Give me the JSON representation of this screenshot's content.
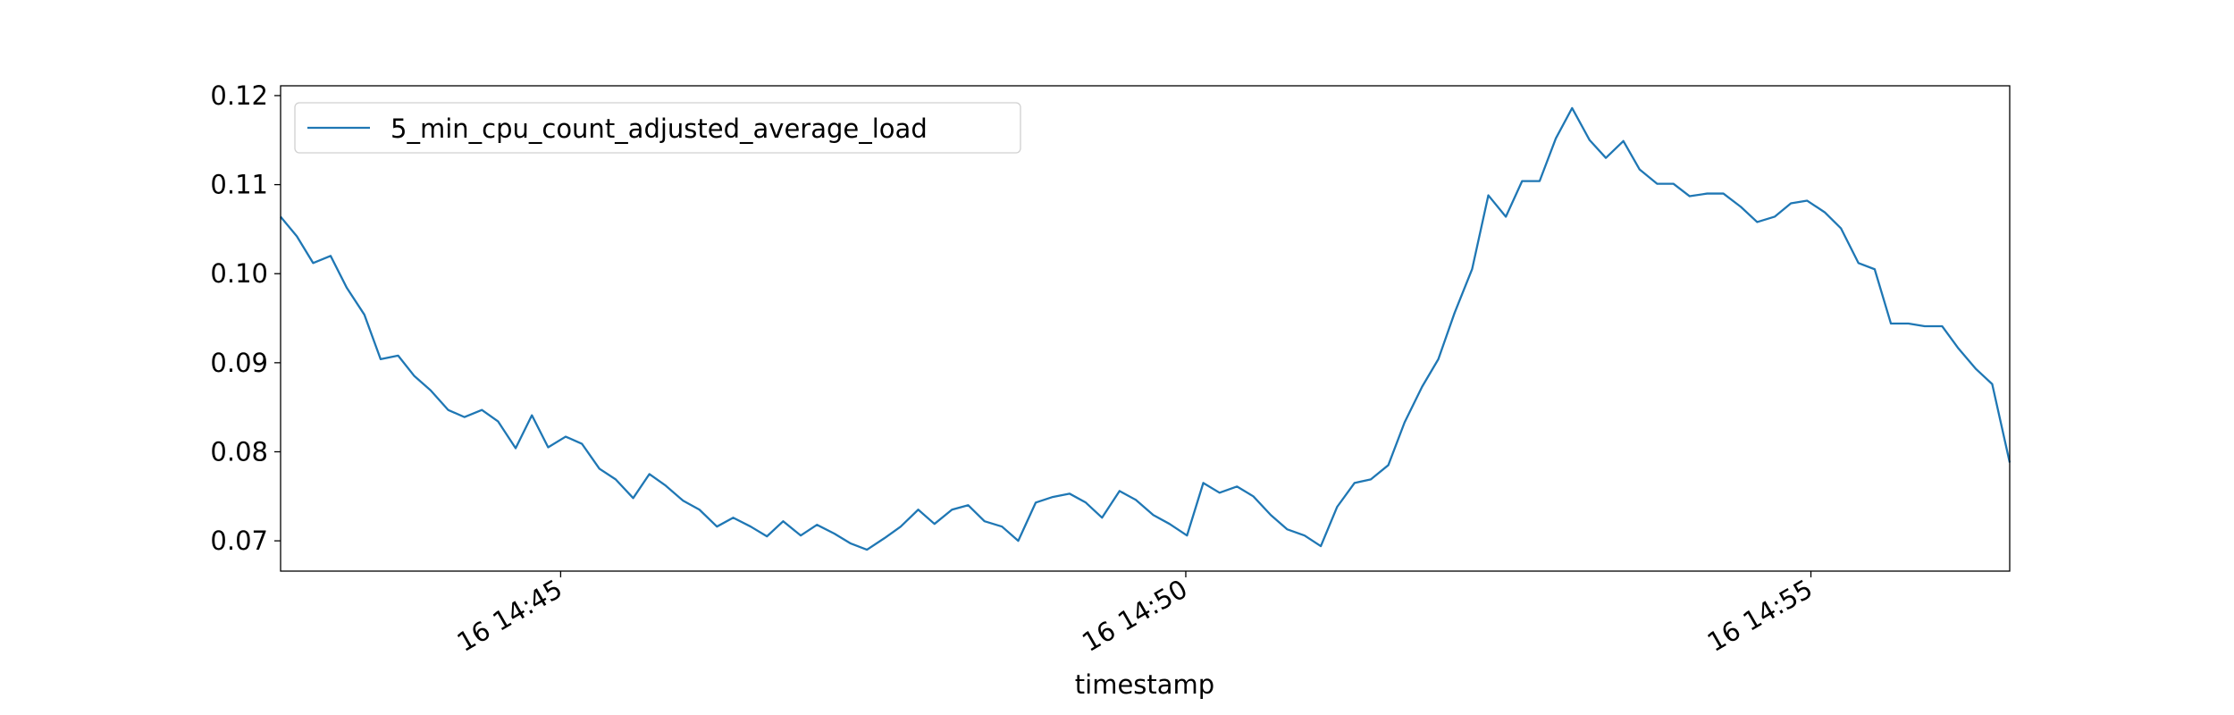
{
  "chart_data": {
    "type": "line",
    "xlabel": "timestamp",
    "x": [
      42.76,
      42.89,
      43.02,
      43.16,
      43.29,
      43.43,
      43.56,
      43.7,
      43.83,
      43.96,
      44.1,
      44.23,
      44.37,
      44.5,
      44.64,
      44.77,
      44.9,
      45.04,
      45.17,
      45.31,
      45.44,
      45.58,
      45.71,
      45.84,
      45.98,
      46.11,
      46.25,
      46.38,
      46.52,
      46.65,
      46.78,
      46.92,
      47.05,
      47.19,
      47.32,
      47.45,
      47.59,
      47.72,
      47.86,
      47.99,
      48.13,
      48.26,
      48.39,
      48.53,
      48.66,
      48.8,
      48.93,
      49.07,
      49.2,
      49.33,
      49.47,
      49.6,
      49.74,
      49.87,
      50.01,
      50.14,
      50.27,
      50.41,
      50.54,
      50.68,
      50.81,
      50.95,
      51.08,
      51.21,
      51.35,
      51.48,
      51.62,
      51.75,
      51.89,
      52.02,
      52.15,
      52.29,
      52.42,
      52.56,
      52.69,
      52.83,
      52.96,
      53.09,
      53.23,
      53.36,
      53.5,
      53.63,
      53.77,
      53.9,
      54.03,
      54.17,
      54.3,
      54.44,
      54.57,
      54.71,
      54.84,
      54.97,
      55.11,
      55.24,
      55.38,
      55.51,
      55.64,
      55.78,
      55.91,
      56.05,
      56.18,
      56.32,
      56.45,
      56.59
    ],
    "series": [
      {
        "name": "5_min_cpu_count_adjusted_average_load",
        "color": "#1f77b4",
        "values": [
          0.1064,
          0.1042,
          0.1012,
          0.102,
          0.0984,
          0.0954,
          0.0904,
          0.0908,
          0.0885,
          0.0869,
          0.0847,
          0.0839,
          0.0847,
          0.0834,
          0.0804,
          0.0841,
          0.0805,
          0.0817,
          0.0809,
          0.0781,
          0.0769,
          0.0748,
          0.0775,
          0.0762,
          0.0745,
          0.0735,
          0.0716,
          0.0726,
          0.0716,
          0.0705,
          0.0722,
          0.0706,
          0.0718,
          0.0708,
          0.0697,
          0.069,
          0.0703,
          0.0716,
          0.0735,
          0.0719,
          0.0735,
          0.074,
          0.0722,
          0.0716,
          0.07,
          0.0743,
          0.0749,
          0.0753,
          0.0743,
          0.0726,
          0.0756,
          0.0746,
          0.0729,
          0.0719,
          0.0706,
          0.0765,
          0.0754,
          0.0761,
          0.075,
          0.0729,
          0.0713,
          0.0706,
          0.0694,
          0.0738,
          0.0765,
          0.0769,
          0.0785,
          0.0833,
          0.0873,
          0.0904,
          0.0956,
          0.1005,
          0.1088,
          0.1064,
          0.1104,
          0.1104,
          0.1152,
          0.1186,
          0.115,
          0.113,
          0.1149,
          0.1117,
          0.1101,
          0.1101,
          0.1087,
          0.109,
          0.109,
          0.1075,
          0.1058,
          0.1064,
          0.1079,
          0.1082,
          0.1069,
          0.1051,
          0.1012,
          0.1005,
          0.0944,
          0.0944,
          0.0941,
          0.0941,
          0.0916,
          0.0893,
          0.0876,
          0.0788
        ]
      }
    ],
    "xlim": [
      42.76,
      56.59
    ],
    "xticks": [
      {
        "value": 45,
        "label": "16 14:45"
      },
      {
        "value": 50,
        "label": "16 14:50"
      },
      {
        "value": 55,
        "label": "16 14:55"
      }
    ],
    "ylim": [
      0.0666,
      0.1211
    ],
    "yticks": [
      0.07,
      0.08,
      0.09,
      {
        "value": 0.1,
        "label": "0.10"
      },
      0.11,
      0.12
    ],
    "grid": false,
    "legend": "upper left"
  }
}
